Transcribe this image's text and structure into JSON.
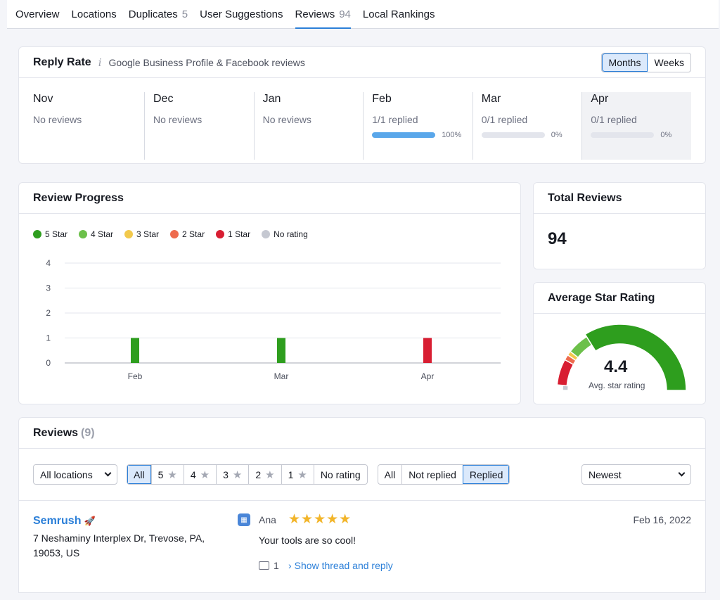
{
  "tabs": [
    {
      "label": "Overview",
      "count": ""
    },
    {
      "label": "Locations",
      "count": ""
    },
    {
      "label": "Duplicates",
      "count": "5"
    },
    {
      "label": "User Suggestions",
      "count": ""
    },
    {
      "label": "Reviews",
      "count": "94"
    },
    {
      "label": "Local Rankings",
      "count": ""
    }
  ],
  "reply_rate": {
    "title": "Reply Rate",
    "info_icon": "i",
    "subtitle": "Google Business Profile & Facebook reviews",
    "toggle": {
      "months": "Months",
      "weeks": "Weeks"
    },
    "months": [
      {
        "name": "Nov",
        "status": "No reviews"
      },
      {
        "name": "Dec",
        "status": "No reviews"
      },
      {
        "name": "Jan",
        "status": "No reviews"
      },
      {
        "name": "Feb",
        "status": "1/1 replied",
        "pct_label": "100%",
        "pct": 100
      },
      {
        "name": "Mar",
        "status": "0/1 replied",
        "pct_label": "0%",
        "pct": 0
      },
      {
        "name": "Apr",
        "status": "0/1 replied",
        "pct_label": "0%",
        "pct": 0
      }
    ]
  },
  "review_progress": {
    "title": "Review Progress",
    "legend": [
      {
        "label": "5 Star",
        "color": "#2e9e1e"
      },
      {
        "label": "4 Star",
        "color": "#6cc04a"
      },
      {
        "label": "3 Star",
        "color": "#f2c94c"
      },
      {
        "label": "2 Star",
        "color": "#ee6b4d"
      },
      {
        "label": "1 Star",
        "color": "#d81e32"
      },
      {
        "label": "No rating",
        "color": "#c5c8d1"
      }
    ]
  },
  "chart_data": {
    "type": "bar",
    "categories": [
      "Feb",
      "Mar",
      "Apr"
    ],
    "series": [
      {
        "name": "5 Star",
        "values": [
          1,
          1,
          0
        ],
        "color": "#2e9e1e"
      },
      {
        "name": "1 Star",
        "values": [
          0,
          0,
          1
        ],
        "color": "#d81e32"
      }
    ],
    "yticks": [
      "0",
      "1",
      "2",
      "3",
      "4"
    ],
    "ylim": [
      0,
      4
    ],
    "grid": true,
    "legend": "top-left"
  },
  "total_reviews": {
    "title": "Total Reviews",
    "value": "94"
  },
  "avg_rating": {
    "title": "Average Star Rating",
    "value": "4.4",
    "caption": "Avg. star rating",
    "rating": 4.4
  },
  "reviews": {
    "title": "Reviews",
    "count": "(9)",
    "location_select": "All locations",
    "rating_filters": [
      {
        "label": "All",
        "star": false,
        "active": true
      },
      {
        "label": "5",
        "star": true
      },
      {
        "label": "4",
        "star": true
      },
      {
        "label": "3",
        "star": true
      },
      {
        "label": "2",
        "star": true
      },
      {
        "label": "1",
        "star": true
      },
      {
        "label": "No rating",
        "star": false
      }
    ],
    "reply_filters": [
      {
        "label": "All"
      },
      {
        "label": "Not replied"
      },
      {
        "label": "Replied",
        "active": true
      }
    ],
    "sort_select": "Newest",
    "items": [
      {
        "business": "Semrush",
        "business_emoji": "🚀",
        "address": "7 Neshaminy Interplex Dr, Trevose, PA, 19053, US",
        "author": "Ana",
        "stars": "★★★★★",
        "date": "Feb 16, 2022",
        "text": "Your tools are so cool!",
        "comments": "1",
        "thread_link": "Show thread and reply"
      }
    ]
  }
}
